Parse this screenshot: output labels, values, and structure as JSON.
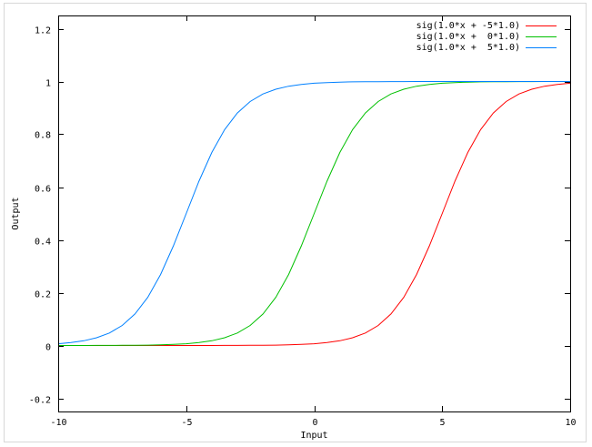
{
  "chart_data": {
    "type": "line",
    "title": "",
    "xlabel": "Input",
    "ylabel": "Output",
    "xlim": [
      -10,
      10
    ],
    "ylim": [
      -0.25,
      1.25
    ],
    "xticks": [
      -10,
      -5,
      0,
      5,
      10
    ],
    "xtick_labels": [
      "-10",
      "-5",
      "0",
      "5",
      "10"
    ],
    "yticks": [
      -0.2,
      0,
      0.2,
      0.4,
      0.6,
      0.8,
      1,
      1.2
    ],
    "ytick_labels": [
      "-0.2",
      "0",
      "0.2",
      "0.4",
      "0.6",
      "0.8",
      "1",
      "1.2"
    ],
    "grid": false,
    "legend_position": "top-right",
    "x": [
      -10,
      -9.5,
      -9,
      -8.5,
      -8,
      -7.5,
      -7,
      -6.5,
      -6,
      -5.5,
      -5,
      -4.5,
      -4,
      -3.5,
      -3,
      -2.5,
      -2,
      -1.5,
      -1,
      -0.5,
      0,
      0.5,
      1,
      1.5,
      2,
      2.5,
      3,
      3.5,
      4,
      4.5,
      5,
      5.5,
      6,
      6.5,
      7,
      7.5,
      8,
      8.5,
      9,
      9.5,
      10
    ],
    "series": [
      {
        "name": "sig(1.0*x + -5*1.0)",
        "color": "#ff0000",
        "values": [
          0,
          0,
          0,
          0,
          0,
          0,
          0,
          0,
          0,
          0,
          0,
          0.0001,
          0.0001,
          0.0002,
          0.0003,
          0.0006,
          0.0009,
          0.0015,
          0.0025,
          0.0041,
          0.0067,
          0.011,
          0.018,
          0.0293,
          0.0474,
          0.0759,
          0.1192,
          0.1824,
          0.2689,
          0.3775,
          0.5,
          0.6225,
          0.7311,
          0.8176,
          0.8808,
          0.9241,
          0.9526,
          0.9707,
          0.982,
          0.989,
          0.9933
        ]
      },
      {
        "name": "sig(1.0*x +  0*1.0)",
        "color": "#00c000",
        "values": [
          0,
          0.0001,
          0.0001,
          0.0002,
          0.0003,
          0.0006,
          0.0009,
          0.0015,
          0.0025,
          0.0041,
          0.0067,
          0.011,
          0.018,
          0.0293,
          0.0474,
          0.0759,
          0.1192,
          0.1824,
          0.2689,
          0.3775,
          0.5,
          0.6225,
          0.7311,
          0.8176,
          0.8808,
          0.9241,
          0.9526,
          0.9707,
          0.982,
          0.989,
          0.9933,
          0.9959,
          0.9975,
          0.9985,
          0.9991,
          0.9994,
          0.9997,
          0.9998,
          0.9999,
          0.9999,
          1.0
        ]
      },
      {
        "name": "sig(1.0*x +  5*1.0)",
        "color": "#0080ff",
        "values": [
          0.0067,
          0.011,
          0.018,
          0.0293,
          0.0474,
          0.0759,
          0.1192,
          0.1824,
          0.2689,
          0.3775,
          0.5,
          0.6225,
          0.7311,
          0.8176,
          0.8808,
          0.9241,
          0.9526,
          0.9707,
          0.982,
          0.989,
          0.9933,
          0.9959,
          0.9975,
          0.9985,
          0.9991,
          0.9994,
          0.9997,
          0.9998,
          0.9999,
          0.9999,
          1.0,
          1.0,
          1.0,
          1.0,
          1.0,
          1.0,
          1.0,
          1.0,
          1.0,
          1.0,
          1.0
        ]
      }
    ]
  }
}
